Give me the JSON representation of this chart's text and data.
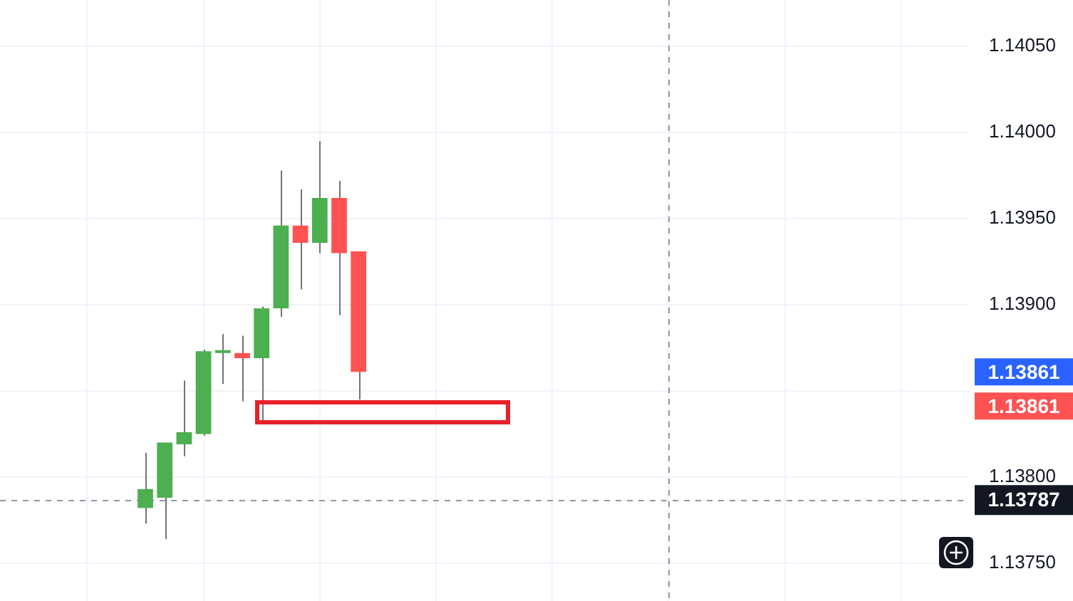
{
  "chart_data": {
    "type": "candlestick",
    "categories": [
      null,
      null,
      null,
      null,
      null,
      null,
      null,
      null,
      null,
      null,
      null,
      null,
      null,
      null,
      null,
      null,
      null,
      null,
      null,
      null,
      null,
      null,
      null,
      null,
      null,
      null,
      null,
      null,
      null,
      null,
      null,
      null,
      null,
      null,
      null,
      null,
      null,
      null,
      null,
      null,
      null,
      null,
      null,
      null,
      null,
      null,
      null,
      null,
      null,
      null
    ],
    "ohlc": [
      null,
      null,
      null,
      null,
      null,
      null,
      null,
      [
        1.13782,
        1.13814,
        1.13773,
        1.13793
      ],
      [
        1.13788,
        1.1382,
        1.13764,
        1.1382
      ],
      [
        1.13819,
        1.13856,
        1.13812,
        1.13826
      ],
      [
        1.13825,
        1.13874,
        1.13824,
        1.13873
      ],
      [
        1.13872,
        1.13883,
        1.13854,
        1.13873
      ],
      [
        1.13872,
        1.13882,
        1.13844,
        1.13869
      ],
      [
        1.13869,
        1.13899,
        1.13833,
        1.13898
      ],
      [
        1.13898,
        1.13978,
        1.13893,
        1.13946
      ],
      [
        1.13946,
        1.13967,
        1.13909,
        1.13936
      ],
      [
        1.13936,
        1.13995,
        1.1393,
        1.13962
      ],
      [
        1.13962,
        1.13972,
        1.13894,
        1.1393
      ],
      [
        1.13931,
        1.13931,
        1.13845,
        1.13861
      ],
      null,
      null,
      null,
      null,
      null,
      null,
      null,
      null,
      null,
      null,
      null,
      null,
      null,
      null,
      null,
      null,
      null,
      null,
      null,
      null,
      null,
      null,
      null,
      null,
      null,
      null,
      null,
      null,
      null,
      null,
      null
    ],
    "ylim": [
      1.13728,
      1.14077
    ],
    "yticks": [
      {
        "value": 1.1375,
        "label": "1.13750"
      },
      {
        "value": 1.138,
        "label": "1.13800"
      },
      {
        "value": 1.1385,
        "label": null
      },
      {
        "value": 1.139,
        "label": "1.13900"
      },
      {
        "value": 1.1395,
        "label": "1.13950"
      },
      {
        "value": 1.14,
        "label": "1.14000"
      },
      {
        "value": 1.1405,
        "label": "1.14050"
      }
    ],
    "grid": true,
    "ref_lines": [
      {
        "axis": "y",
        "value": 1.13787,
        "label": "1.13787",
        "color": "#9598a1",
        "line_style": "dashed"
      }
    ],
    "annotations": [
      "1.13861",
      "1.13861"
    ]
  }
}
